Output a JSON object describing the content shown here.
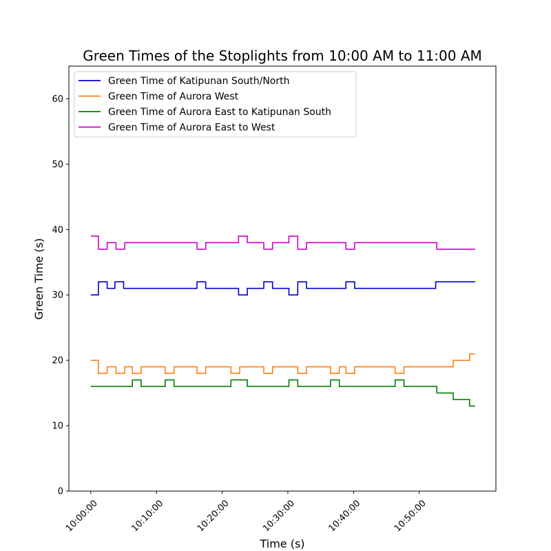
{
  "chart_data": {
    "type": "line",
    "step": true,
    "title": "Green Times of the Stoplights from 10:00 AM to 11:00 AM",
    "xlabel": "Time (s)",
    "ylabel": "Green Time (s)",
    "xlim": [
      "09:56:40",
      "11:01:40"
    ],
    "ylim": [
      0,
      65
    ],
    "x_ticks": [
      "10:00:00",
      "10:10:00",
      "10:20:00",
      "10:30:00",
      "10:40:00",
      "10:50:00"
    ],
    "y_ticks": [
      "0",
      "10",
      "20",
      "30",
      "40",
      "50",
      "60"
    ],
    "grid": false,
    "legend_position": "upper-left",
    "series": [
      {
        "name": "Green Time of Katipunan South/North",
        "color": "#0000cc",
        "points": [
          [
            "10:00:00",
            30
          ],
          [
            "10:01:10",
            32
          ],
          [
            "10:02:30",
            31
          ],
          [
            "10:03:40",
            32
          ],
          [
            "10:05:00",
            31
          ],
          [
            "10:16:10",
            32
          ],
          [
            "10:17:30",
            31
          ],
          [
            "10:22:30",
            30
          ],
          [
            "10:23:50",
            31
          ],
          [
            "10:26:20",
            32
          ],
          [
            "10:27:40",
            31
          ],
          [
            "10:30:10",
            30
          ],
          [
            "10:31:30",
            32
          ],
          [
            "10:32:50",
            31
          ],
          [
            "10:38:50",
            32
          ],
          [
            "10:40:10",
            31
          ],
          [
            "10:52:30",
            32
          ],
          [
            "10:58:30",
            32
          ]
        ]
      },
      {
        "name": "Green Time of Aurora West",
        "color": "#ff7f0e",
        "points": [
          [
            "10:00:00",
            20
          ],
          [
            "10:01:10",
            18
          ],
          [
            "10:02:30",
            19
          ],
          [
            "10:03:50",
            18
          ],
          [
            "10:05:10",
            19
          ],
          [
            "10:06:20",
            18
          ],
          [
            "10:07:40",
            19
          ],
          [
            "10:11:20",
            18
          ],
          [
            "10:12:40",
            19
          ],
          [
            "10:16:10",
            18
          ],
          [
            "10:17:30",
            19
          ],
          [
            "10:21:20",
            18
          ],
          [
            "10:22:40",
            19
          ],
          [
            "10:26:20",
            18
          ],
          [
            "10:27:40",
            19
          ],
          [
            "10:31:30",
            18
          ],
          [
            "10:32:50",
            19
          ],
          [
            "10:36:30",
            18
          ],
          [
            "10:37:50",
            19
          ],
          [
            "10:38:50",
            18
          ],
          [
            "10:40:10",
            19
          ],
          [
            "10:46:20",
            18
          ],
          [
            "10:47:40",
            19
          ],
          [
            "10:55:10",
            20
          ],
          [
            "10:57:40",
            21
          ],
          [
            "10:58:30",
            21
          ]
        ]
      },
      {
        "name": "Green Time of Aurora East to Katipunan South",
        "color": "#008000",
        "points": [
          [
            "10:00:00",
            16
          ],
          [
            "10:06:20",
            17
          ],
          [
            "10:07:40",
            16
          ],
          [
            "10:11:20",
            17
          ],
          [
            "10:12:40",
            16
          ],
          [
            "10:21:20",
            17
          ],
          [
            "10:23:50",
            16
          ],
          [
            "10:30:10",
            17
          ],
          [
            "10:31:30",
            16
          ],
          [
            "10:36:30",
            17
          ],
          [
            "10:37:50",
            16
          ],
          [
            "10:46:20",
            17
          ],
          [
            "10:47:40",
            16
          ],
          [
            "10:52:40",
            15
          ],
          [
            "10:55:10",
            14
          ],
          [
            "10:57:40",
            13
          ],
          [
            "10:58:30",
            13
          ]
        ]
      },
      {
        "name": "Green Time of Aurora East to West",
        "color": "#cc00cc",
        "points": [
          [
            "10:00:00",
            39
          ],
          [
            "10:01:10",
            37
          ],
          [
            "10:02:30",
            38
          ],
          [
            "10:03:50",
            37
          ],
          [
            "10:05:10",
            38
          ],
          [
            "10:16:10",
            37
          ],
          [
            "10:17:30",
            38
          ],
          [
            "10:22:30",
            39
          ],
          [
            "10:23:50",
            38
          ],
          [
            "10:26:20",
            37
          ],
          [
            "10:27:40",
            38
          ],
          [
            "10:30:10",
            39
          ],
          [
            "10:31:30",
            37
          ],
          [
            "10:32:50",
            38
          ],
          [
            "10:38:50",
            37
          ],
          [
            "10:40:10",
            38
          ],
          [
            "10:52:40",
            37
          ],
          [
            "10:58:30",
            37
          ]
        ]
      }
    ]
  }
}
